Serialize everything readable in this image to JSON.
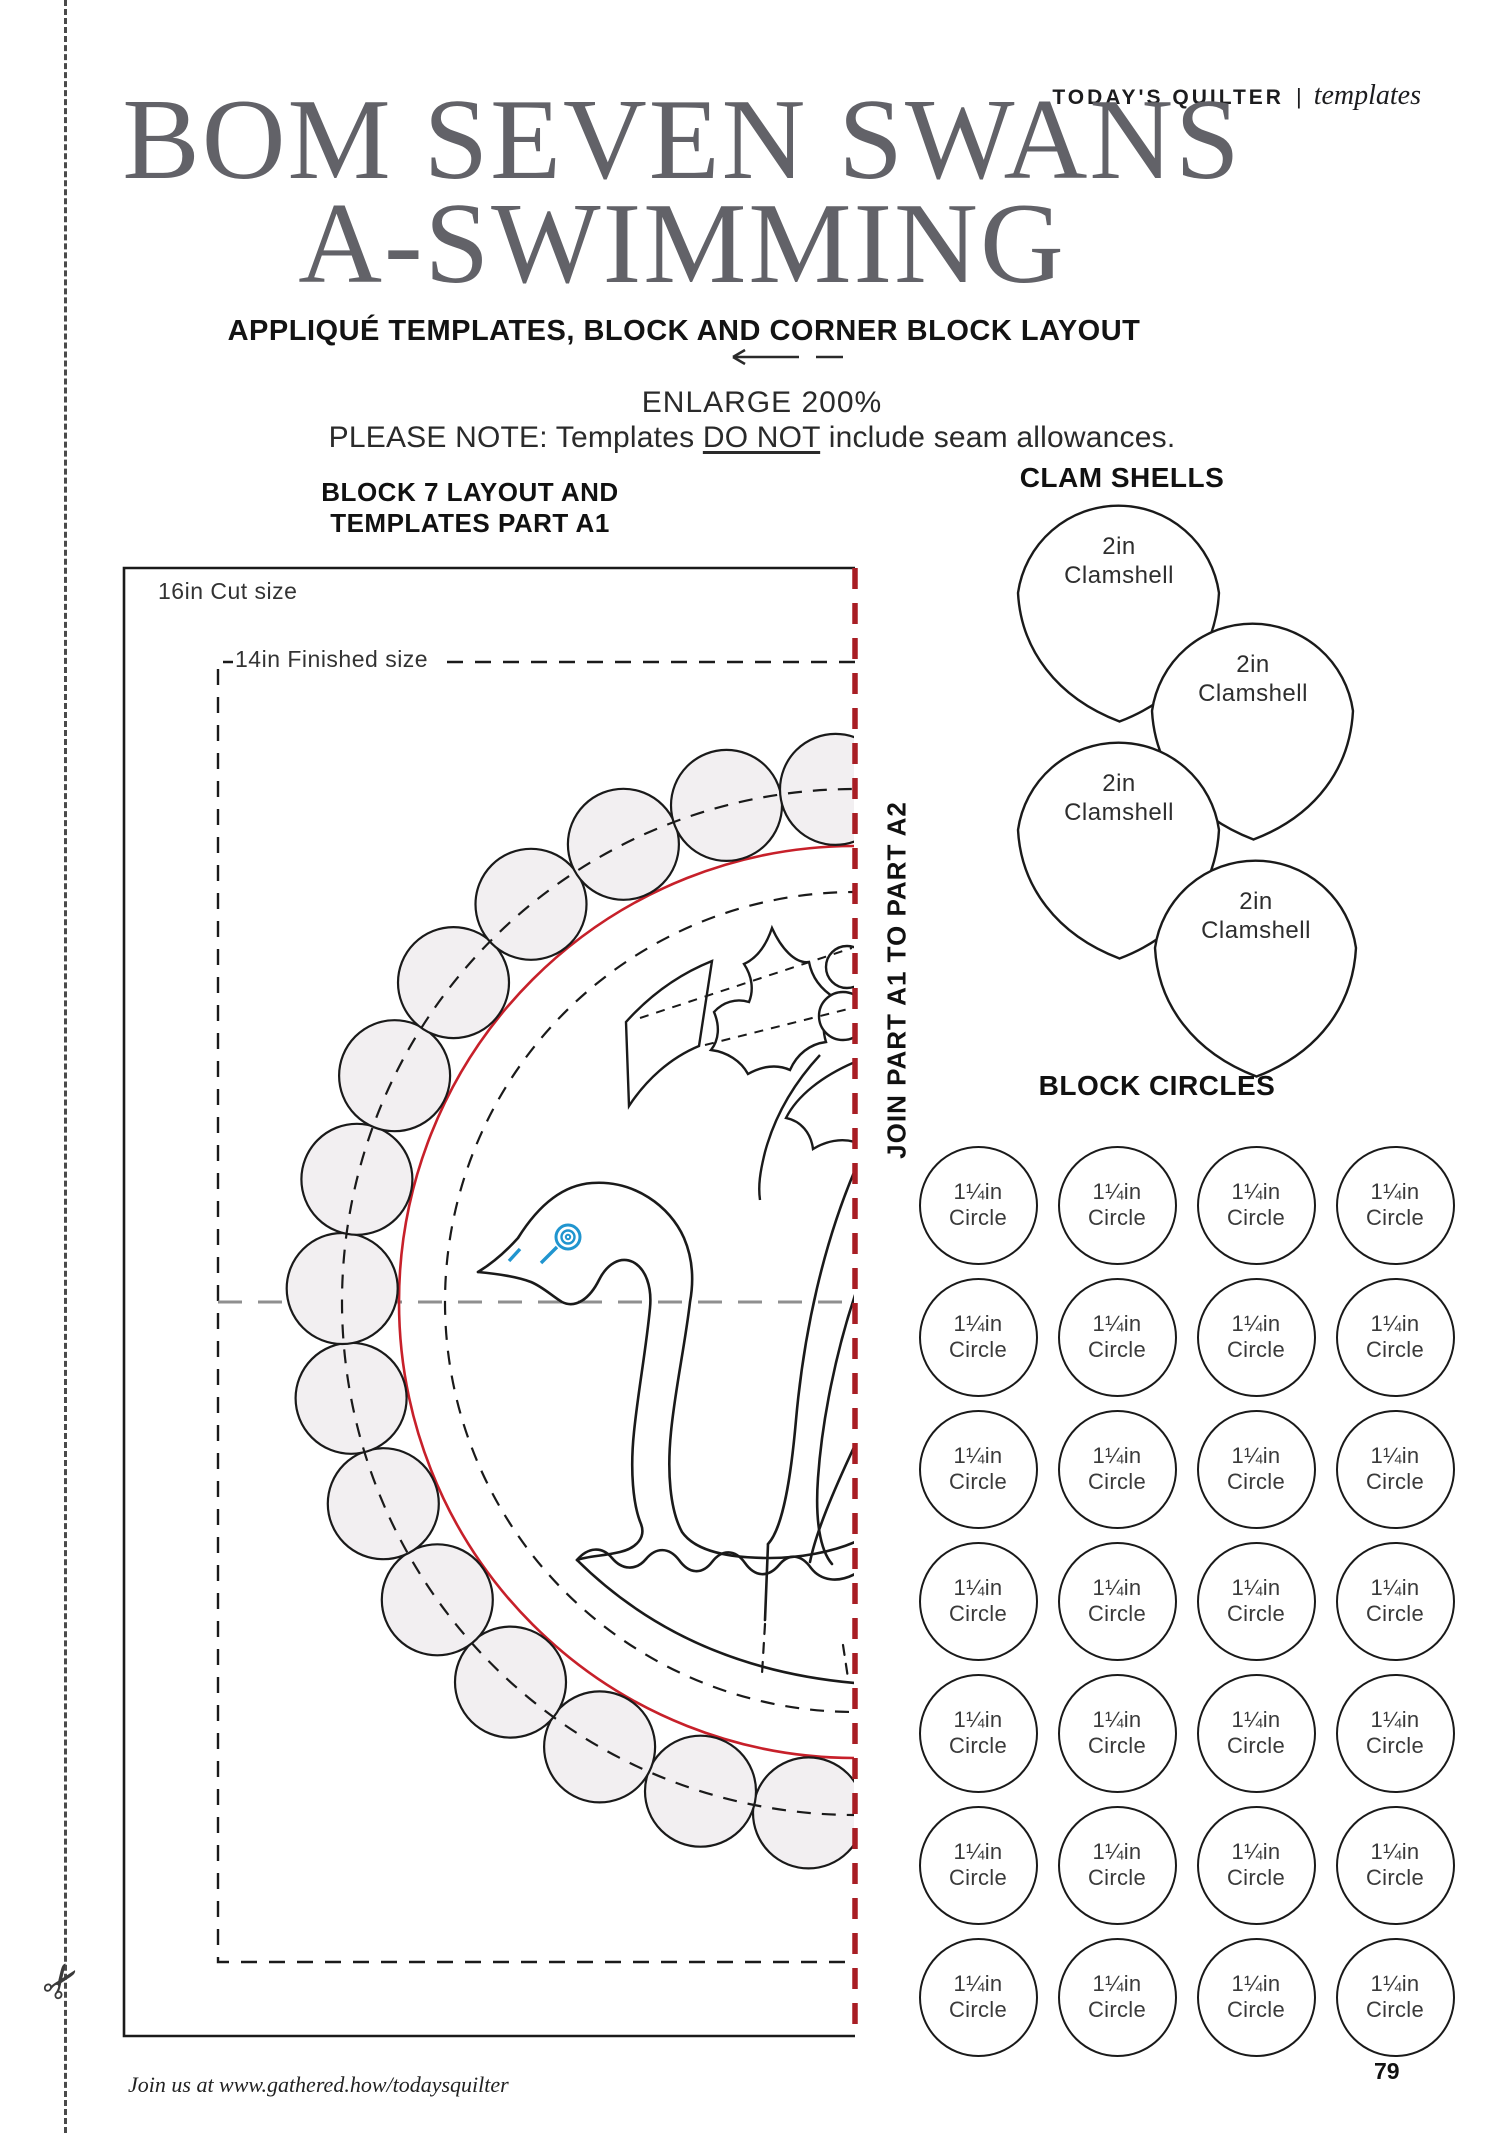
{
  "header": {
    "brand": "TODAY'S QUILTER",
    "separator": "|",
    "section": "templates"
  },
  "title": {
    "line1": "BOM SEVEN SWANS",
    "line2": "A-SWIMMING",
    "subtitle": "APPLIQUÉ TEMPLATES, BLOCK AND CORNER BLOCK LAYOUT"
  },
  "notes": {
    "enlarge": "ENLARGE 200%",
    "note_prefix": "PLEASE NOTE: Templates ",
    "note_underlined": "DO NOT",
    "note_suffix": " include seam allowances."
  },
  "block_layout": {
    "heading_line1": "BLOCK 7 LAYOUT AND",
    "heading_line2": "TEMPLATES PART A1",
    "cut_size_label": "16in Cut size",
    "finished_size_label": "14in Finished size",
    "join_label": "JOIN PART A1 TO PART A2"
  },
  "clam_shells": {
    "heading": "CLAM SHELLS",
    "items": [
      {
        "line1": "2in",
        "line2": "Clamshell"
      },
      {
        "line1": "2in",
        "line2": "Clamshell"
      },
      {
        "line1": "2in",
        "line2": "Clamshell"
      },
      {
        "line1": "2in",
        "line2": "Clamshell"
      }
    ]
  },
  "block_circles": {
    "heading": "BLOCK CIRCLES",
    "items": [
      {
        "line1": "1¼in",
        "line2": "Circle"
      },
      {
        "line1": "1¼in",
        "line2": "Circle"
      },
      {
        "line1": "1¼in",
        "line2": "Circle"
      },
      {
        "line1": "1¼in",
        "line2": "Circle"
      },
      {
        "line1": "1¼in",
        "line2": "Circle"
      },
      {
        "line1": "1¼in",
        "line2": "Circle"
      },
      {
        "line1": "1¼in",
        "line2": "Circle"
      },
      {
        "line1": "1¼in",
        "line2": "Circle"
      },
      {
        "line1": "1¼in",
        "line2": "Circle"
      },
      {
        "line1": "1¼in",
        "line2": "Circle"
      },
      {
        "line1": "1¼in",
        "line2": "Circle"
      },
      {
        "line1": "1¼in",
        "line2": "Circle"
      },
      {
        "line1": "1¼in",
        "line2": "Circle"
      },
      {
        "line1": "1¼in",
        "line2": "Circle"
      },
      {
        "line1": "1¼in",
        "line2": "Circle"
      },
      {
        "line1": "1¼in",
        "line2": "Circle"
      },
      {
        "line1": "1¼in",
        "line2": "Circle"
      },
      {
        "line1": "1¼in",
        "line2": "Circle"
      },
      {
        "line1": "1¼in",
        "line2": "Circle"
      },
      {
        "line1": "1¼in",
        "line2": "Circle"
      },
      {
        "line1": "1¼in",
        "line2": "Circle"
      },
      {
        "line1": "1¼in",
        "line2": "Circle"
      },
      {
        "line1": "1¼in",
        "line2": "Circle"
      },
      {
        "line1": "1¼in",
        "line2": "Circle"
      },
      {
        "line1": "1¼in",
        "line2": "Circle"
      },
      {
        "line1": "1¼in",
        "line2": "Circle"
      },
      {
        "line1": "1¼in",
        "line2": "Circle"
      },
      {
        "line1": "1¼in",
        "line2": "Circle"
      }
    ]
  },
  "footer": {
    "text": "Join us at www.gathered.how/todaysquilter",
    "page_number": "79"
  },
  "icons": {
    "scissors": "✂"
  },
  "colors": {
    "join_line_red": "#a81d24",
    "guide_circle_red": "#c7202a",
    "pin_blue": "#2095cf",
    "ring_circle_fill": "#f2eff1",
    "title_gray": "#626268"
  }
}
